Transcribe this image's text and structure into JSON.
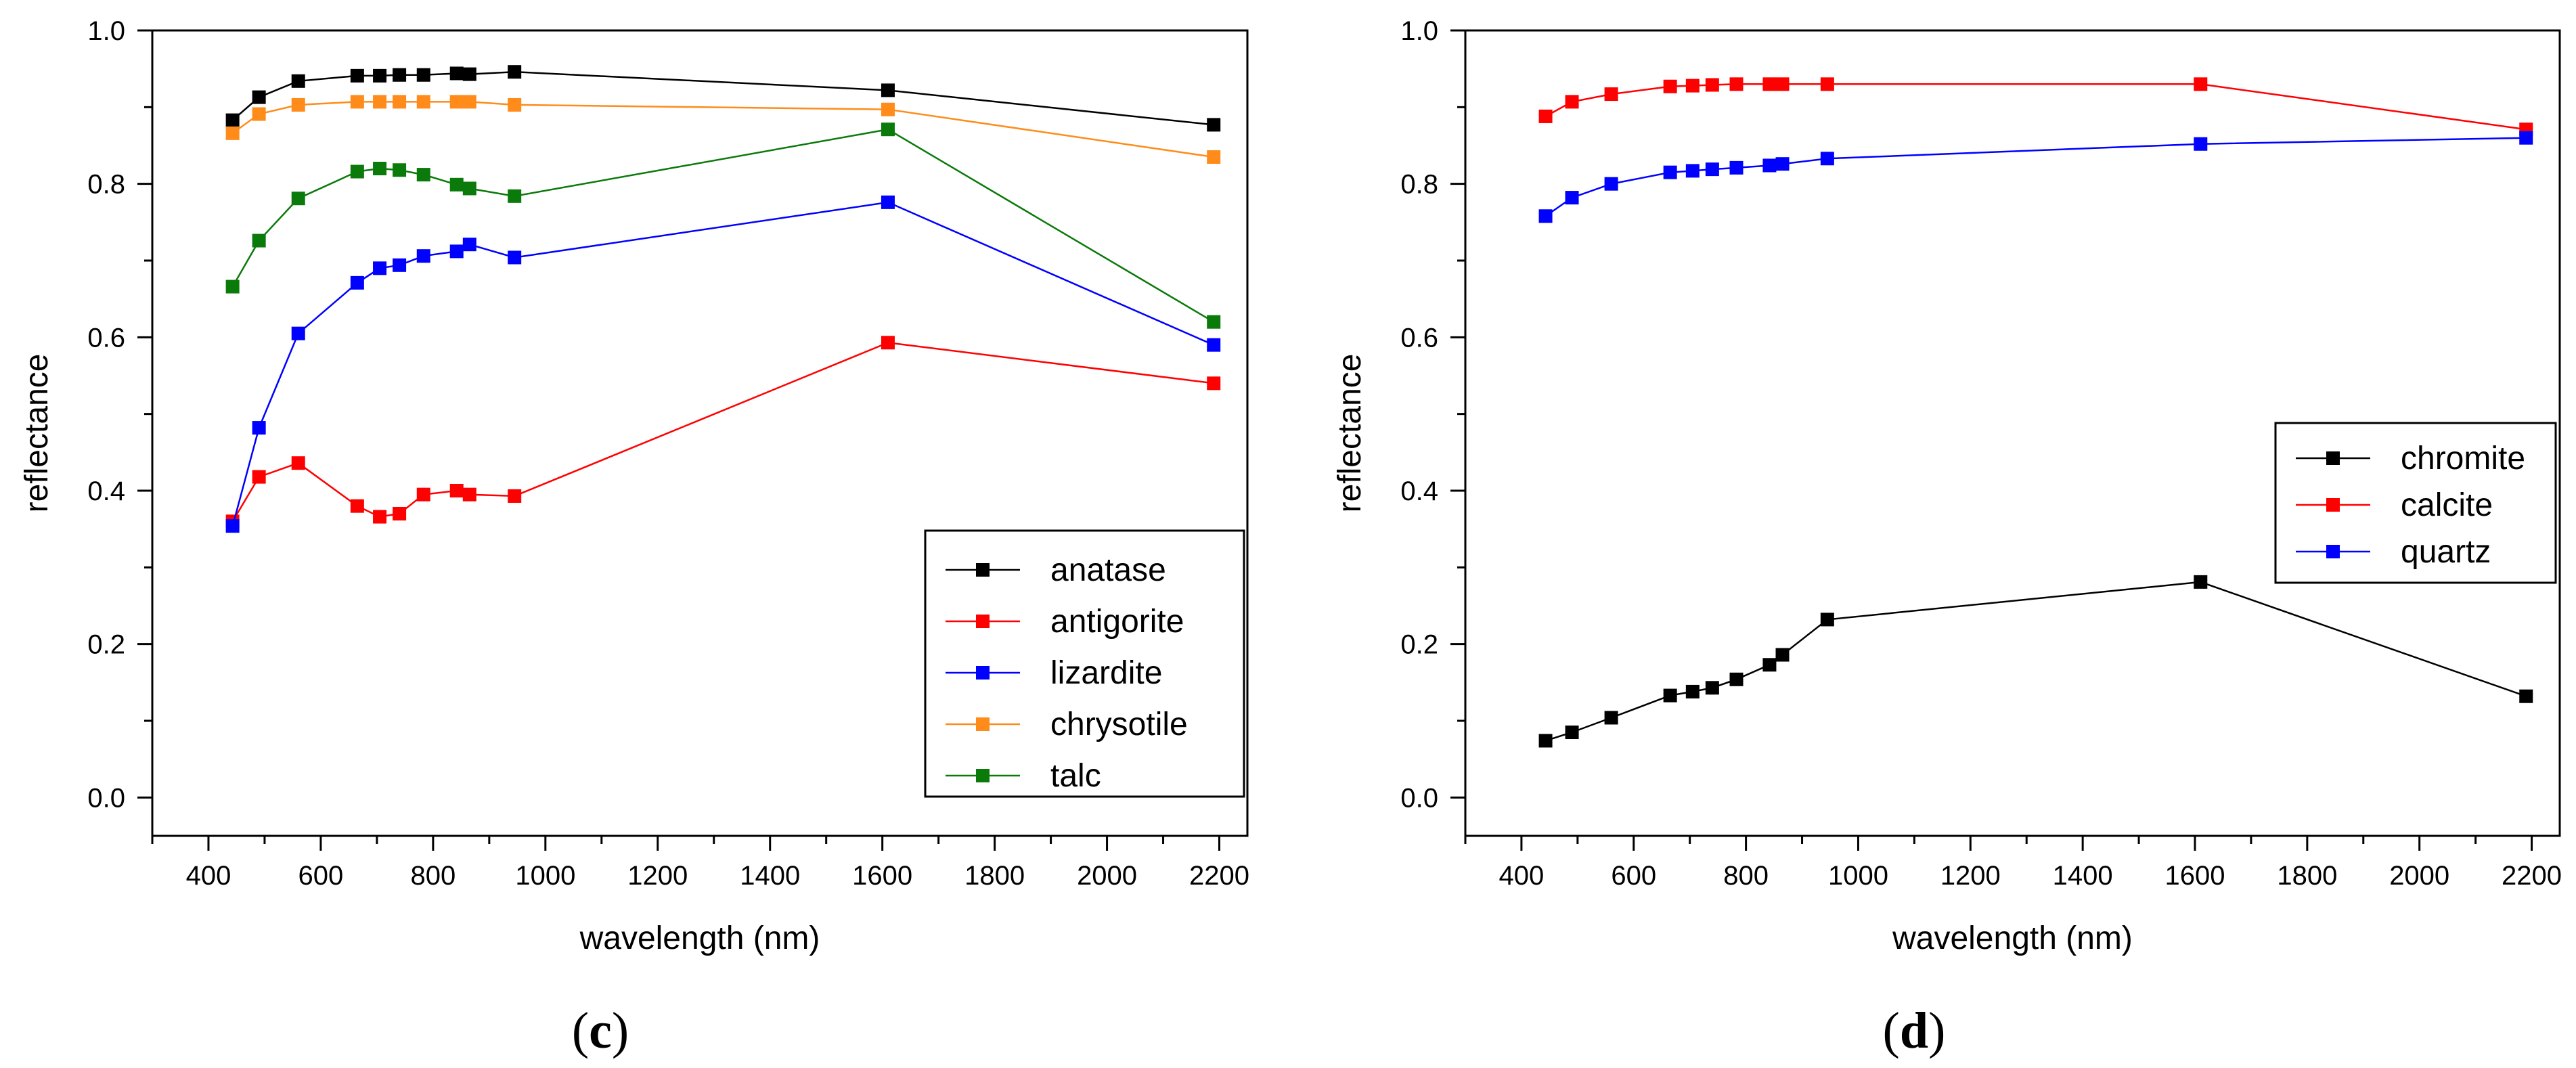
{
  "chart_data": [
    {
      "type": "line",
      "panel_label": {
        "open": "(",
        "letter": "c",
        "close": ")"
      },
      "xlabel": "wavelength (nm)",
      "ylabel": "reflectance",
      "xlim": [
        300,
        2250
      ],
      "ylim": [
        -0.05,
        1.0
      ],
      "xticks": [
        400,
        600,
        800,
        1000,
        1200,
        1400,
        1600,
        1800,
        2000,
        2200
      ],
      "yticks": [
        0.0,
        0.2,
        0.4,
        0.6,
        0.8,
        1.0
      ],
      "xtick_labels": [
        "400",
        "600",
        "800",
        "1000",
        "1200",
        "1400",
        "1600",
        "1800",
        "2000",
        "2200"
      ],
      "ytick_labels": [
        "0.0",
        "0.2",
        "0.4",
        "0.6",
        "0.8",
        "1.0"
      ],
      "legend_position": "bottom-right",
      "x": [
        443,
        490,
        560,
        665,
        705,
        740,
        783,
        842,
        865,
        945,
        1610,
        2190
      ],
      "series": [
        {
          "name": "anatase",
          "color": "#000000",
          "values": [
            0.883,
            0.913,
            0.934,
            0.941,
            0.941,
            0.942,
            0.942,
            0.944,
            0.943,
            0.946,
            0.922,
            0.877
          ]
        },
        {
          "name": "antigorite",
          "color": "#ff0000",
          "values": [
            0.36,
            0.418,
            0.436,
            0.38,
            0.366,
            0.37,
            0.395,
            0.4,
            0.395,
            0.393,
            0.593,
            0.54
          ]
        },
        {
          "name": "lizardite",
          "color": "#0000ff",
          "values": [
            0.354,
            0.482,
            0.605,
            0.671,
            0.69,
            0.694,
            0.706,
            0.712,
            0.721,
            0.704,
            0.776,
            0.59
          ]
        },
        {
          "name": "chrysotile",
          "color": "#ff8c1a",
          "values": [
            0.866,
            0.891,
            0.903,
            0.907,
            0.907,
            0.907,
            0.907,
            0.907,
            0.907,
            0.903,
            0.897,
            0.835
          ]
        },
        {
          "name": "talc",
          "color": "#0a7a0a",
          "values": [
            0.666,
            0.726,
            0.781,
            0.816,
            0.82,
            0.818,
            0.812,
            0.799,
            0.794,
            0.784,
            0.871,
            0.62
          ]
        }
      ]
    },
    {
      "type": "line",
      "panel_label": {
        "open": "(",
        "letter": "d",
        "close": ")"
      },
      "xlabel": "wavelength (nm)",
      "ylabel": "reflectance",
      "xlim": [
        300,
        2250
      ],
      "ylim": [
        -0.05,
        1.0
      ],
      "xticks": [
        400,
        600,
        800,
        1000,
        1200,
        1400,
        1600,
        1800,
        2000,
        2200
      ],
      "yticks": [
        0.0,
        0.2,
        0.4,
        0.6,
        0.8,
        1.0
      ],
      "xtick_labels": [
        "400",
        "600",
        "800",
        "1000",
        "1200",
        "1400",
        "1600",
        "1800",
        "2000",
        "2200"
      ],
      "ytick_labels": [
        "0.0",
        "0.2",
        "0.4",
        "0.6",
        "0.8",
        "1.0"
      ],
      "legend_position": "right",
      "x": [
        443,
        490,
        560,
        665,
        705,
        740,
        783,
        842,
        865,
        945,
        1610,
        2190
      ],
      "series": [
        {
          "name": "chromite",
          "color": "#000000",
          "values": [
            0.074,
            0.085,
            0.104,
            0.133,
            0.138,
            0.143,
            0.154,
            0.173,
            0.186,
            0.232,
            0.281,
            0.132
          ]
        },
        {
          "name": "calcite",
          "color": "#ff0000",
          "values": [
            0.888,
            0.907,
            0.917,
            0.927,
            0.928,
            0.929,
            0.93,
            0.93,
            0.93,
            0.93,
            0.93,
            0.871
          ]
        },
        {
          "name": "quartz",
          "color": "#0000ff",
          "values": [
            0.758,
            0.782,
            0.8,
            0.815,
            0.817,
            0.819,
            0.821,
            0.824,
            0.826,
            0.833,
            0.852,
            0.86
          ]
        }
      ]
    }
  ]
}
